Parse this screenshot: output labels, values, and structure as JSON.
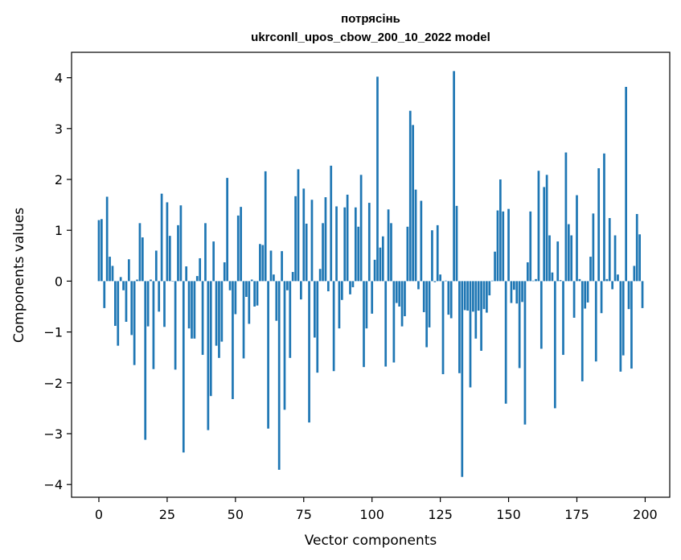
{
  "chart_data": {
    "type": "bar",
    "title_line1": "потрясінь",
    "title_line2": "ukrconll_upos_cbow_200_10_2022 model",
    "xlabel": "Vector components",
    "ylabel": "Components values",
    "xlim": [
      -10,
      209
    ],
    "ylim": [
      -4.25,
      4.5
    ],
    "xticks": [
      0,
      25,
      50,
      75,
      100,
      125,
      150,
      175,
      200
    ],
    "yticks": [
      4,
      3,
      2,
      1,
      0,
      -1,
      -2,
      -3,
      -4
    ],
    "xtick_labels": [
      "0",
      "25",
      "50",
      "75",
      "100",
      "125",
      "150",
      "175",
      "200"
    ],
    "ytick_labels": [
      "4",
      "3",
      "2",
      "1",
      "0",
      "−1",
      "−2",
      "−3",
      "−4"
    ],
    "bar_color": "#1f77b4",
    "grid": false,
    "values": [
      1.2,
      1.22,
      -0.53,
      1.66,
      0.48,
      0.3,
      -0.88,
      -1.27,
      0.08,
      -0.18,
      -0.8,
      0.43,
      -1.06,
      -1.65,
      0.03,
      1.14,
      0.86,
      -3.12,
      -0.89,
      0.03,
      -1.73,
      0.6,
      -0.6,
      1.72,
      -0.9,
      1.55,
      0.89,
      0.0,
      -1.74,
      1.1,
      1.49,
      -3.37,
      0.29,
      -0.93,
      -1.13,
      -1.13,
      0.1,
      0.45,
      -1.45,
      1.14,
      -2.93,
      -2.26,
      0.78,
      -1.27,
      -1.51,
      -1.19,
      0.37,
      2.03,
      -0.18,
      -2.32,
      -0.65,
      1.29,
      1.46,
      -1.52,
      -0.31,
      -0.84,
      0.03,
      -0.5,
      -0.48,
      0.73,
      0.71,
      2.16,
      -2.9,
      0.6,
      0.13,
      -0.78,
      -3.71,
      0.59,
      -2.53,
      -0.18,
      -1.51,
      0.18,
      1.67,
      2.2,
      -0.36,
      1.82,
      1.13,
      -2.78,
      1.6,
      -1.11,
      -1.8,
      0.24,
      1.14,
      1.65,
      -0.2,
      2.27,
      -1.77,
      1.47,
      -0.93,
      -0.37,
      1.45,
      1.7,
      -0.26,
      -0.12,
      1.45,
      1.07,
      2.09,
      -1.69,
      -0.93,
      1.54,
      -0.64,
      0.42,
      4.02,
      0.66,
      0.88,
      -1.68,
      1.41,
      1.14,
      -1.6,
      -0.43,
      -0.5,
      -0.89,
      -0.69,
      1.07,
      3.35,
      3.07,
      1.8,
      -0.16,
      1.58,
      -0.61,
      -1.3,
      -0.91,
      1.0,
      -0.02,
      1.1,
      0.13,
      -1.83,
      0.01,
      -0.66,
      -0.73,
      4.13,
      1.48,
      -1.81,
      -3.85,
      -0.57,
      -0.58,
      -2.09,
      -0.6,
      -1.13,
      -0.58,
      -1.37,
      -0.55,
      -0.62,
      -0.28,
      0.01,
      0.58,
      1.39,
      2.0,
      1.37,
      -2.41,
      1.42,
      -0.43,
      -0.17,
      -0.44,
      -1.71,
      -0.41,
      -2.82,
      0.37,
      1.37,
      0.01,
      0.04,
      2.17,
      -1.33,
      1.85,
      2.09,
      0.9,
      0.17,
      -2.5,
      0.78,
      0.02,
      -1.45,
      2.53,
      1.12,
      0.9,
      -0.72,
      1.69,
      0.04,
      -1.97,
      -0.54,
      -0.42,
      0.48,
      1.33,
      -1.58,
      2.22,
      -0.63,
      2.51,
      0.04,
      1.24,
      -0.16,
      0.9,
      0.13,
      -1.78,
      -1.46,
      3.82,
      -0.55,
      -1.72,
      0.3,
      1.32,
      0.92,
      -0.53
    ]
  }
}
